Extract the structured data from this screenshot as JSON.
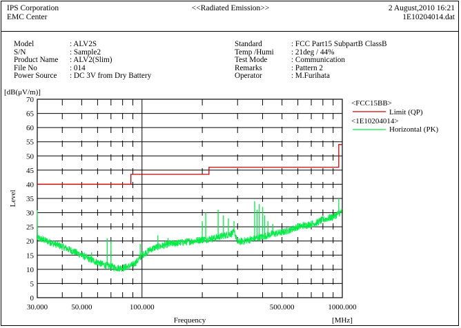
{
  "header": {
    "company": "IPS Corporation",
    "center": "EMC Center",
    "title": "<<Radiated Emission>>",
    "date": "2 August,2010 16:21",
    "file": "1E10204014.dat"
  },
  "info_left": [
    {
      "key": "Model",
      "value": ": ALV2S"
    },
    {
      "key": "S/N",
      "value": ": Sample2"
    },
    {
      "key": "Product Name",
      "value": ": ALV2(Slim)"
    },
    {
      "key": "File No",
      "value": ": 014"
    },
    {
      "key": "Power Source",
      "value": ": DC 3V from Dry Battery"
    }
  ],
  "info_right": [
    {
      "key": "Standard",
      "value": ": FCC Part15 SubpartB ClassB"
    },
    {
      "key": "Temp /Humi",
      "value": ": 21deg / 44%"
    },
    {
      "key": "Test Mode",
      "value": ": Communication"
    },
    {
      "key": "Remarks",
      "value": ": Pattern 2"
    },
    {
      "key": "Operator",
      "value": ": M.Furihata"
    }
  ],
  "colors": {
    "limit": "#cc0000",
    "trace": "#00ee44",
    "grid": "#000000"
  },
  "chart_data": {
    "type": "line",
    "ylabel_unit": "[dB(μV/m)]",
    "ylabel": "Level",
    "xlabel": "Frequency",
    "xunit": "[MHz]",
    "x_scale": "log",
    "xlim": [
      30,
      1000
    ],
    "ylim": [
      0,
      70
    ],
    "y_ticks": [
      0,
      5,
      10,
      15,
      20,
      25,
      30,
      35,
      40,
      45,
      50,
      55,
      60,
      65,
      70
    ],
    "x_tick_labels": [
      {
        "value": 30,
        "label": "30.000"
      },
      {
        "value": 50,
        "label": "50.000"
      },
      {
        "value": 100,
        "label": "100.000"
      },
      {
        "value": 500,
        "label": "500.000"
      },
      {
        "value": 1000,
        "label": "1000.000"
      }
    ],
    "x_minor_ticks": [
      40,
      60,
      70,
      80,
      90,
      200,
      300,
      400,
      600,
      700,
      800,
      900
    ],
    "legend": {
      "limit_group": "<FCC15BB>",
      "limit_name": "Limit (QP)",
      "trace_group": "<1E10204014>",
      "trace_name": "Horizontal (PK)",
      "placement": "top-right"
    },
    "series": [
      {
        "name": "Limit (QP)",
        "kind": "step",
        "x": [
          30,
          88,
          88,
          216,
          216,
          960,
          960,
          1000
        ],
        "y": [
          40,
          40,
          43.5,
          43.5,
          46,
          46,
          54,
          54
        ]
      },
      {
        "name": "Horizontal (PK)",
        "kind": "noise",
        "baseline": {
          "x": [
            30,
            32,
            35,
            40,
            45,
            50,
            55,
            60,
            65,
            70,
            75,
            80,
            85,
            90,
            95,
            100,
            110,
            120,
            140,
            160,
            180,
            200,
            230,
            260,
            290,
            300,
            320,
            350,
            400,
            450,
            500,
            550,
            600,
            650,
            700,
            750,
            800,
            850,
            900,
            950,
            1000
          ],
          "y": [
            21,
            20.5,
            19.5,
            18,
            16.5,
            15,
            13.5,
            12.5,
            11.5,
            11,
            10.5,
            10.5,
            11,
            11.5,
            13,
            15,
            17,
            18,
            19,
            19.5,
            20,
            20.5,
            21,
            22,
            23,
            19.5,
            20,
            20.5,
            21.5,
            22.5,
            23,
            24,
            25,
            25.5,
            26,
            26.5,
            27.5,
            28,
            28.5,
            29.5,
            30.5
          ]
        },
        "spikes": [
          {
            "x": 56,
            "y": 16
          },
          {
            "x": 67,
            "y": 21
          },
          {
            "x": 70,
            "y": 20
          },
          {
            "x": 98,
            "y": 19
          },
          {
            "x": 120,
            "y": 22
          },
          {
            "x": 135,
            "y": 21
          },
          {
            "x": 148,
            "y": 20
          },
          {
            "x": 200,
            "y": 27
          },
          {
            "x": 208,
            "y": 30
          },
          {
            "x": 240,
            "y": 31
          },
          {
            "x": 255,
            "y": 29
          },
          {
            "x": 270,
            "y": 28
          },
          {
            "x": 288,
            "y": 27
          },
          {
            "x": 365,
            "y": 34
          },
          {
            "x": 375,
            "y": 31
          },
          {
            "x": 385,
            "y": 33
          },
          {
            "x": 400,
            "y": 32
          },
          {
            "x": 410,
            "y": 29
          },
          {
            "x": 425,
            "y": 27
          },
          {
            "x": 450,
            "y": 26
          },
          {
            "x": 960,
            "y": 35
          }
        ]
      }
    ]
  }
}
